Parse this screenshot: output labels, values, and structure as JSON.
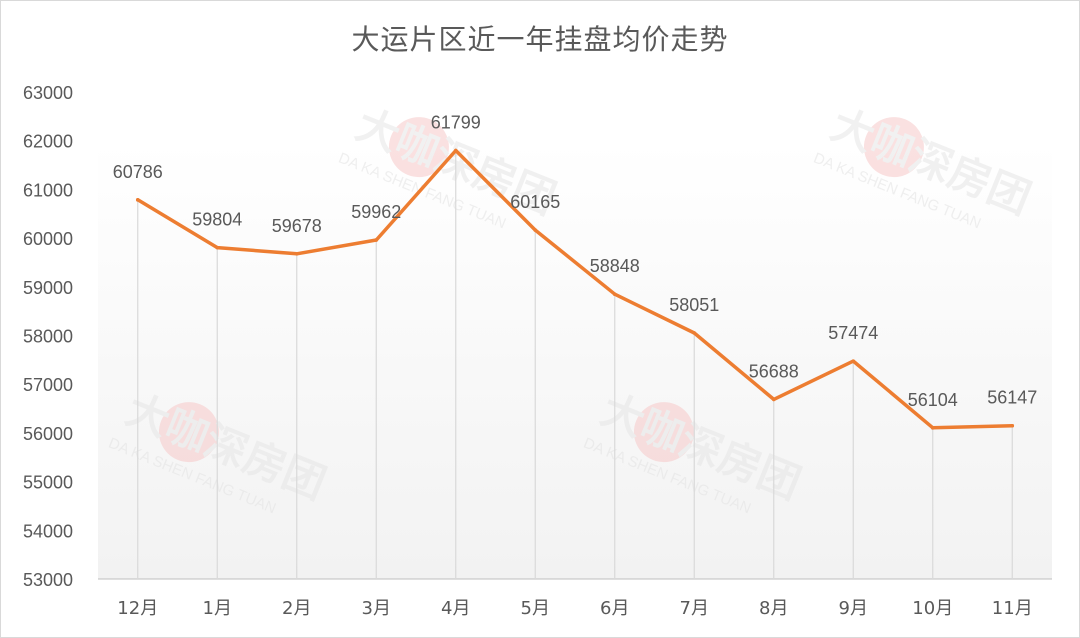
{
  "chart_data": {
    "type": "line",
    "title": "大运片区近一年挂盘均价走势",
    "categories": [
      "12月",
      "1月",
      "2月",
      "3月",
      "4月",
      "5月",
      "6月",
      "7月",
      "8月",
      "9月",
      "10月",
      "11月"
    ],
    "series": [
      {
        "values": [
          60786,
          59804,
          59678,
          59962,
          61799,
          60165,
          58848,
          58051,
          56688,
          57474,
          56104,
          56147
        ]
      }
    ],
    "ylim": [
      53000,
      63000
    ],
    "yticks": [
      53000,
      54000,
      55000,
      56000,
      57000,
      58000,
      59000,
      60000,
      61000,
      62000,
      63000
    ],
    "grid": false,
    "drop_lines": true,
    "legend": "none",
    "data_labels": true
  },
  "colors": {
    "line": "#ed7d31",
    "axis_text": "#595959",
    "drop_line": "#d9d9d9",
    "title": "#595959"
  },
  "watermark": {
    "logo": "大咖深房团",
    "subtitle": "DA KA SHEN FANG TUAN"
  }
}
